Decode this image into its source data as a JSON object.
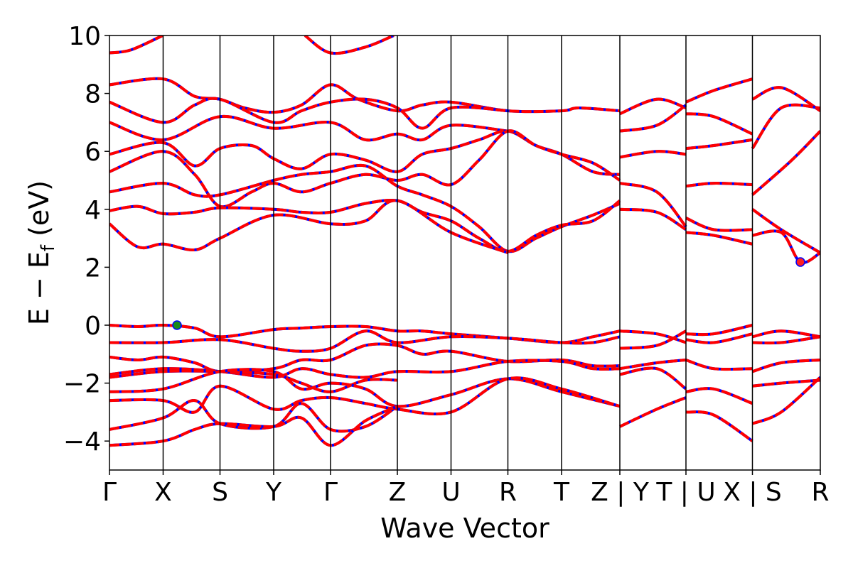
{
  "chart_data": {
    "type": "line",
    "title": "",
    "xlabel": "Wave Vector",
    "ylabel": "E − E",
    "ylabel_sub": "f",
    "ylabel_unit": " (eV)",
    "ylim": [
      -5,
      10
    ],
    "yticks": [
      -4,
      -2,
      0,
      2,
      4,
      6,
      8,
      10
    ],
    "ytick_labels": [
      "−4",
      "−2",
      "0",
      "2",
      "4",
      "6",
      "8",
      "10"
    ],
    "kpath_positions": [
      0,
      0.755,
      1.555,
      2.31,
      3.11,
      4.05,
      4.805,
      5.605,
      6.36,
      7.18,
      8.11,
      9.045,
      10.0
    ],
    "kpath_labels": [
      "Γ",
      "X",
      "S",
      "Y",
      "Γ",
      "Z",
      "U",
      "R",
      "T",
      "Z | Y",
      "T | U",
      "X | S",
      "R"
    ],
    "series_colors": {
      "primary": "#ff0000",
      "overlay": "#0000ff"
    },
    "markers": [
      {
        "kind": "valence_band_maximum",
        "x": 0.95,
        "y": 0.0,
        "color": "#1a8a1a"
      },
      {
        "kind": "conduction_band_minimum",
        "x": 9.72,
        "y": 2.18,
        "color": "#ff2020"
      }
    ],
    "bands": [
      [
        [
          0,
          9.4
        ],
        [
          0.3,
          9.5
        ],
        [
          0.75,
          10.0
        ]
      ],
      [
        [
          2.75,
          10.0
        ],
        [
          3.11,
          9.4
        ],
        [
          3.6,
          9.6
        ],
        [
          4.0,
          10.0
        ]
      ],
      [
        [
          0,
          8.3
        ],
        [
          0.755,
          8.5
        ],
        [
          1.2,
          7.9
        ],
        [
          1.555,
          7.8
        ],
        [
          1.9,
          7.5
        ],
        [
          2.31,
          7.35
        ],
        [
          2.7,
          7.6
        ],
        [
          3.11,
          8.3
        ],
        [
          3.5,
          7.8
        ],
        [
          4.05,
          7.4
        ],
        [
          4.4,
          7.6
        ],
        [
          4.805,
          7.7
        ],
        [
          5.605,
          7.4
        ],
        [
          6.36,
          7.4
        ],
        [
          6.6,
          7.5
        ],
        [
          7.18,
          7.4
        ]
      ],
      [
        [
          0,
          7.7
        ],
        [
          0.755,
          7.0
        ],
        [
          1.2,
          7.6
        ],
        [
          1.555,
          7.8
        ],
        [
          2.31,
          7.0
        ],
        [
          2.7,
          7.4
        ],
        [
          3.11,
          7.7
        ],
        [
          3.6,
          7.8
        ],
        [
          4.05,
          7.5
        ],
        [
          4.4,
          6.8
        ],
        [
          4.805,
          7.5
        ],
        [
          5.605,
          7.4
        ]
      ],
      [
        [
          0,
          7.0
        ],
        [
          0.755,
          6.4
        ],
        [
          1.555,
          7.2
        ],
        [
          2.31,
          6.8
        ],
        [
          3.11,
          7.0
        ],
        [
          3.6,
          6.4
        ],
        [
          4.05,
          6.6
        ],
        [
          4.4,
          6.4
        ],
        [
          4.805,
          6.9
        ],
        [
          5.605,
          6.7
        ]
      ],
      [
        [
          0,
          5.9
        ],
        [
          0.755,
          6.3
        ],
        [
          1.2,
          5.5
        ],
        [
          1.555,
          6.1
        ],
        [
          2.0,
          6.2
        ],
        [
          2.31,
          5.75
        ],
        [
          2.7,
          5.4
        ],
        [
          3.11,
          5.9
        ],
        [
          3.6,
          5.7
        ],
        [
          4.05,
          5.3
        ],
        [
          4.4,
          5.9
        ],
        [
          4.805,
          6.1
        ],
        [
          5.2,
          6.4
        ],
        [
          5.605,
          6.7
        ],
        [
          6.0,
          6.2
        ],
        [
          6.36,
          5.9
        ],
        [
          6.8,
          5.3
        ],
        [
          7.18,
          5.2
        ]
      ],
      [
        [
          0,
          5.3
        ],
        [
          0.755,
          6.0
        ],
        [
          1.2,
          5.2
        ],
        [
          1.555,
          4.1
        ],
        [
          2.0,
          4.6
        ],
        [
          2.31,
          4.9
        ],
        [
          2.7,
          4.6
        ],
        [
          3.11,
          4.9
        ],
        [
          3.6,
          5.2
        ],
        [
          4.05,
          5.0
        ],
        [
          4.4,
          5.2
        ],
        [
          4.805,
          4.85
        ],
        [
          5.2,
          5.7
        ],
        [
          5.605,
          6.7
        ],
        [
          6.0,
          6.2
        ],
        [
          6.36,
          5.9
        ],
        [
          6.8,
          5.6
        ],
        [
          7.18,
          5.0
        ]
      ],
      [
        [
          0,
          4.6
        ],
        [
          0.755,
          4.9
        ],
        [
          1.2,
          4.5
        ],
        [
          1.555,
          4.5
        ],
        [
          2.31,
          5.0
        ],
        [
          2.7,
          5.2
        ],
        [
          3.11,
          5.3
        ],
        [
          3.6,
          5.5
        ],
        [
          4.05,
          4.8
        ],
        [
          4.4,
          4.5
        ],
        [
          4.805,
          4.1
        ],
        [
          5.2,
          3.4
        ],
        [
          5.605,
          2.55
        ],
        [
          6.0,
          3.0
        ],
        [
          6.36,
          3.4
        ],
        [
          6.8,
          3.8
        ],
        [
          7.18,
          4.2
        ]
      ],
      [
        [
          0,
          3.95
        ],
        [
          0.4,
          4.1
        ],
        [
          0.755,
          3.85
        ],
        [
          1.2,
          3.9
        ],
        [
          1.555,
          4.05
        ],
        [
          2.31,
          4.0
        ],
        [
          2.7,
          3.9
        ],
        [
          3.11,
          3.9
        ],
        [
          3.6,
          4.2
        ],
        [
          4.05,
          4.3
        ],
        [
          4.4,
          3.9
        ],
        [
          4.805,
          3.6
        ],
        [
          5.2,
          3.0
        ],
        [
          5.605,
          2.55
        ],
        [
          6.0,
          3.1
        ],
        [
          6.36,
          3.45
        ],
        [
          6.8,
          3.6
        ],
        [
          7.18,
          4.3
        ]
      ],
      [
        [
          0,
          3.5
        ],
        [
          0.4,
          2.7
        ],
        [
          0.755,
          2.8
        ],
        [
          1.2,
          2.6
        ],
        [
          1.555,
          3.0
        ],
        [
          2.31,
          3.8
        ],
        [
          3.11,
          3.5
        ],
        [
          3.6,
          3.6
        ],
        [
          4.05,
          4.3
        ],
        [
          4.805,
          3.2
        ],
        [
          5.605,
          2.5
        ]
      ],
      [
        [
          7.18,
          7.3
        ],
        [
          7.7,
          7.8
        ],
        [
          8.11,
          7.5
        ]
      ],
      [
        [
          7.18,
          6.7
        ],
        [
          7.7,
          6.9
        ],
        [
          8.11,
          7.6
        ]
      ],
      [
        [
          7.18,
          5.8
        ],
        [
          7.7,
          6.0
        ],
        [
          8.11,
          5.9
        ]
      ],
      [
        [
          7.18,
          4.9
        ],
        [
          7.7,
          4.6
        ],
        [
          8.11,
          3.4
        ]
      ],
      [
        [
          7.18,
          4.0
        ],
        [
          7.7,
          3.9
        ],
        [
          8.11,
          3.3
        ]
      ],
      [
        [
          8.11,
          7.7
        ],
        [
          8.5,
          8.1
        ],
        [
          9.045,
          8.5
        ]
      ],
      [
        [
          8.11,
          7.3
        ],
        [
          8.5,
          7.2
        ],
        [
          9.045,
          6.6
        ]
      ],
      [
        [
          8.11,
          6.1
        ],
        [
          8.5,
          6.2
        ],
        [
          9.045,
          6.4
        ]
      ],
      [
        [
          8.11,
          4.8
        ],
        [
          8.5,
          4.9
        ],
        [
          9.045,
          4.85
        ]
      ],
      [
        [
          8.11,
          3.7
        ],
        [
          8.5,
          3.3
        ],
        [
          9.045,
          3.3
        ]
      ],
      [
        [
          8.11,
          3.2
        ],
        [
          8.5,
          3.1
        ],
        [
          9.045,
          2.8
        ]
      ],
      [
        [
          9.045,
          7.8
        ],
        [
          9.45,
          8.2
        ],
        [
          10.0,
          7.4
        ]
      ],
      [
        [
          9.045,
          6.1
        ],
        [
          9.45,
          7.5
        ],
        [
          10.0,
          7.5
        ]
      ],
      [
        [
          9.045,
          4.5
        ],
        [
          9.6,
          5.7
        ],
        [
          10.0,
          6.7
        ]
      ],
      [
        [
          9.045,
          4.0
        ],
        [
          9.45,
          3.3
        ],
        [
          10.0,
          2.5
        ]
      ],
      [
        [
          9.045,
          3.1
        ],
        [
          9.45,
          3.2
        ],
        [
          9.72,
          2.18
        ],
        [
          10.0,
          2.5
        ]
      ],
      [
        [
          0,
          0.0
        ],
        [
          0.4,
          -0.05
        ],
        [
          0.755,
          0.0
        ],
        [
          1.2,
          -0.1
        ],
        [
          1.555,
          -0.4
        ],
        [
          2.31,
          -0.15
        ],
        [
          2.7,
          -0.1
        ],
        [
          3.11,
          -0.05
        ],
        [
          3.6,
          -0.05
        ],
        [
          4.05,
          -0.2
        ],
        [
          4.4,
          -0.2
        ],
        [
          4.805,
          -0.3
        ],
        [
          5.605,
          -0.45
        ],
        [
          6.36,
          -0.6
        ],
        [
          6.8,
          -0.4
        ],
        [
          7.18,
          -0.2
        ]
      ],
      [
        [
          0,
          -0.6
        ],
        [
          0.755,
          -0.6
        ],
        [
          1.555,
          -0.5
        ],
        [
          2.31,
          -0.8
        ],
        [
          2.7,
          -0.9
        ],
        [
          3.11,
          -0.8
        ],
        [
          3.6,
          -0.2
        ],
        [
          4.05,
          -0.6
        ],
        [
          4.805,
          -0.4
        ],
        [
          5.605,
          -0.45
        ],
        [
          6.36,
          -0.6
        ],
        [
          6.8,
          -0.6
        ],
        [
          7.18,
          -0.4
        ]
      ],
      [
        [
          0,
          -1.1
        ],
        [
          0.4,
          -1.2
        ],
        [
          0.755,
          -1.1
        ],
        [
          1.2,
          -1.3
        ],
        [
          1.555,
          -1.6
        ],
        [
          2.31,
          -1.5
        ],
        [
          2.7,
          -1.2
        ],
        [
          3.11,
          -1.2
        ],
        [
          3.6,
          -0.7
        ],
        [
          4.05,
          -0.7
        ],
        [
          4.4,
          -1.0
        ],
        [
          4.805,
          -0.9
        ],
        [
          5.605,
          -1.25
        ],
        [
          6.36,
          -1.2
        ],
        [
          6.8,
          -1.4
        ],
        [
          7.18,
          -1.4
        ]
      ],
      [
        [
          0,
          -1.7
        ],
        [
          0.755,
          -1.5
        ],
        [
          1.555,
          -1.6
        ],
        [
          2.31,
          -1.8
        ],
        [
          2.7,
          -1.5
        ],
        [
          3.11,
          -1.7
        ],
        [
          3.6,
          -1.8
        ],
        [
          4.05,
          -1.6
        ],
        [
          4.805,
          -1.6
        ],
        [
          5.605,
          -1.25
        ],
        [
          6.36,
          -1.25
        ],
        [
          6.8,
          -1.5
        ],
        [
          7.18,
          -1.5
        ]
      ],
      [
        [
          0,
          -1.8
        ],
        [
          0.755,
          -1.6
        ],
        [
          1.555,
          -1.6
        ],
        [
          2.31,
          -1.7
        ],
        [
          2.7,
          -2.0
        ],
        [
          3.11,
          -2.3
        ],
        [
          3.6,
          -1.9
        ],
        [
          4.05,
          -1.9
        ]
      ],
      [
        [
          0,
          -2.3
        ],
        [
          0.755,
          -2.2
        ],
        [
          1.555,
          -1.6
        ],
        [
          2.31,
          -1.6
        ],
        [
          2.7,
          -2.2
        ],
        [
          3.11,
          -2.0
        ],
        [
          3.6,
          -2.2
        ],
        [
          4.05,
          -2.8
        ],
        [
          4.805,
          -2.4
        ],
        [
          5.605,
          -1.85
        ],
        [
          6.36,
          -2.3
        ],
        [
          7.18,
          -2.8
        ]
      ],
      [
        [
          0,
          -2.6
        ],
        [
          0.755,
          -2.6
        ],
        [
          1.2,
          -3.0
        ],
        [
          1.555,
          -2.1
        ],
        [
          2.31,
          -2.9
        ],
        [
          2.7,
          -2.6
        ],
        [
          3.11,
          -2.5
        ],
        [
          3.6,
          -2.7
        ],
        [
          4.05,
          -2.9
        ],
        [
          4.805,
          -3.0
        ],
        [
          5.605,
          -1.85
        ],
        [
          6.36,
          -2.2
        ],
        [
          7.18,
          -2.8
        ]
      ],
      [
        [
          0,
          -3.6
        ],
        [
          0.755,
          -3.2
        ],
        [
          1.2,
          -2.6
        ],
        [
          1.555,
          -3.4
        ],
        [
          2.31,
          -3.5
        ],
        [
          2.7,
          -2.7
        ],
        [
          3.11,
          -3.6
        ],
        [
          3.6,
          -3.5
        ],
        [
          4.05,
          -2.8
        ]
      ],
      [
        [
          0,
          -4.15
        ],
        [
          0.755,
          -4.0
        ],
        [
          1.2,
          -3.6
        ],
        [
          1.555,
          -3.4
        ],
        [
          2.31,
          -3.5
        ],
        [
          2.7,
          -3.2
        ],
        [
          3.11,
          -4.15
        ],
        [
          3.6,
          -3.3
        ],
        [
          4.05,
          -2.8
        ]
      ],
      [
        [
          7.18,
          -0.2
        ],
        [
          7.7,
          -0.3
        ],
        [
          8.11,
          -0.6
        ]
      ],
      [
        [
          7.18,
          -0.8
        ],
        [
          7.7,
          -0.7
        ],
        [
          8.11,
          -0.2
        ]
      ],
      [
        [
          7.18,
          -1.5
        ],
        [
          7.7,
          -1.3
        ],
        [
          8.11,
          -1.2
        ]
      ],
      [
        [
          7.18,
          -1.7
        ],
        [
          7.7,
          -1.5
        ],
        [
          8.11,
          -2.2
        ]
      ],
      [
        [
          7.18,
          -3.5
        ],
        [
          7.7,
          -2.9
        ],
        [
          8.11,
          -2.5
        ]
      ],
      [
        [
          8.11,
          -0.3
        ],
        [
          8.5,
          -0.3
        ],
        [
          9.045,
          0.0
        ]
      ],
      [
        [
          8.11,
          -0.5
        ],
        [
          8.5,
          -0.6
        ],
        [
          9.045,
          -0.3
        ]
      ],
      [
        [
          8.11,
          -1.2
        ],
        [
          8.5,
          -1.5
        ],
        [
          9.045,
          -1.5
        ]
      ],
      [
        [
          8.11,
          -2.3
        ],
        [
          8.5,
          -2.2
        ],
        [
          9.045,
          -2.7
        ]
      ],
      [
        [
          8.11,
          -3.0
        ],
        [
          8.5,
          -3.1
        ],
        [
          9.045,
          -4.0
        ]
      ],
      [
        [
          9.045,
          -0.4
        ],
        [
          9.45,
          -0.2
        ],
        [
          10.0,
          -0.4
        ]
      ],
      [
        [
          9.045,
          -0.6
        ],
        [
          9.45,
          -0.6
        ],
        [
          10.0,
          -0.4
        ]
      ],
      [
        [
          9.045,
          -1.6
        ],
        [
          9.45,
          -1.3
        ],
        [
          10.0,
          -1.2
        ]
      ],
      [
        [
          9.045,
          -2.1
        ],
        [
          9.45,
          -2.0
        ],
        [
          10.0,
          -1.9
        ]
      ],
      [
        [
          9.045,
          -3.4
        ],
        [
          9.45,
          -3.0
        ],
        [
          10.0,
          -1.8
        ]
      ]
    ]
  }
}
